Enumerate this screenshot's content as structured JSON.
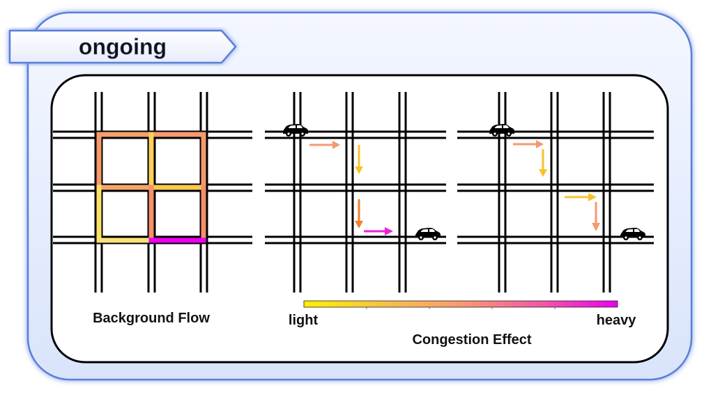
{
  "status_tab": {
    "label": "ongoing"
  },
  "panels": {
    "background": {
      "caption": "Background Flow"
    },
    "scale": {
      "left_label": "light",
      "right_label": "heavy",
      "title": "Congestion Effect"
    }
  },
  "colors": {
    "light": "#fff000",
    "mid": "#fa9a70",
    "heavy": "#ee00ee",
    "road": "#000000",
    "frame_blue": "#8aa6e8"
  },
  "icons": {
    "car": "car-icon",
    "arrow": "arrow-icon"
  }
}
